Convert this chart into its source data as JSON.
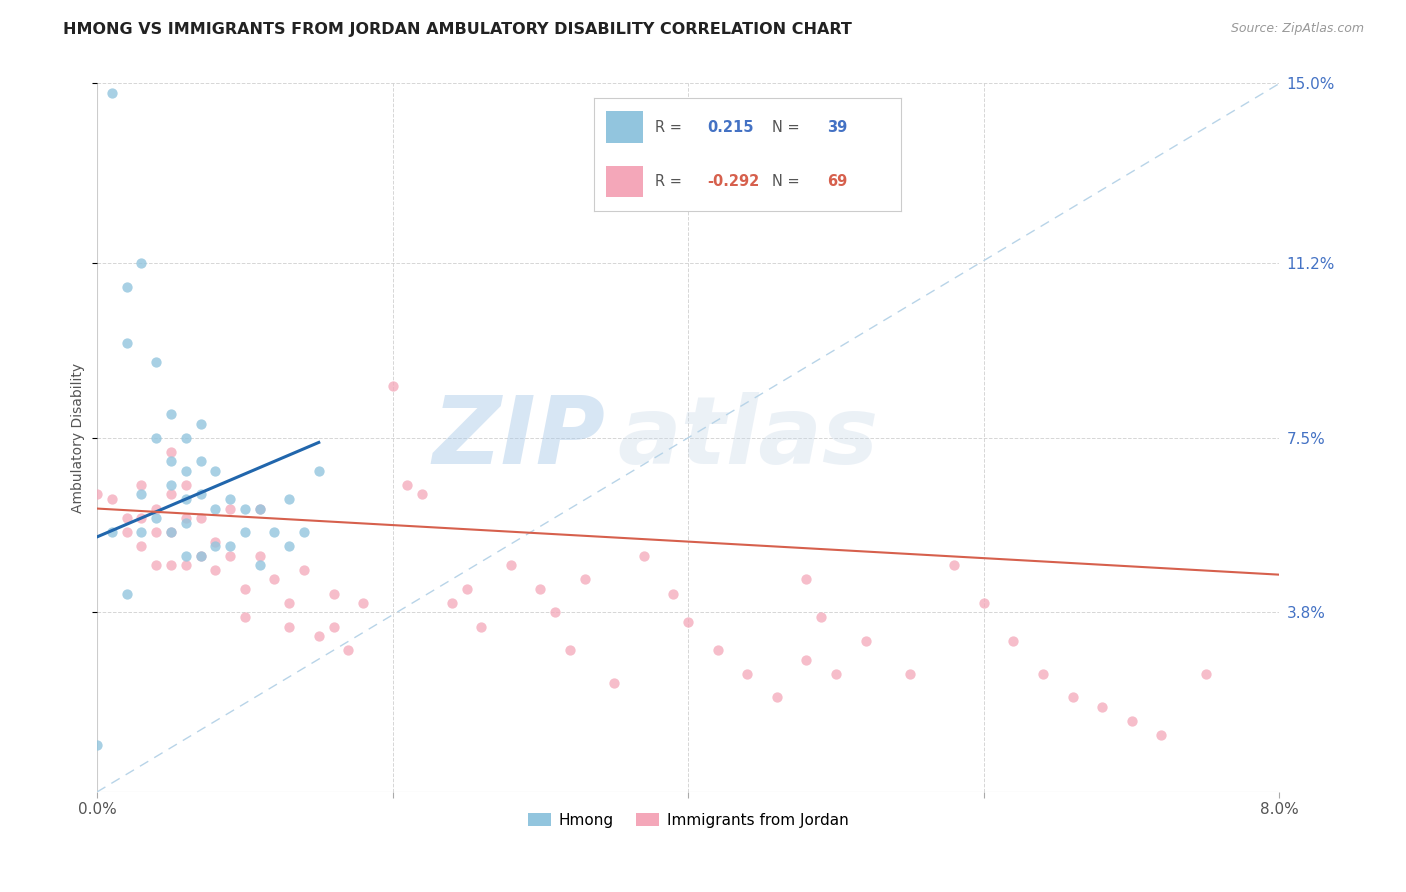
{
  "title": "HMONG VS IMMIGRANTS FROM JORDAN AMBULATORY DISABILITY CORRELATION CHART",
  "source": "Source: ZipAtlas.com",
  "ylabel": "Ambulatory Disability",
  "x_min": 0.0,
  "x_max": 0.08,
  "y_min": 0.0,
  "y_max": 0.15,
  "y_tick_labels_right": [
    "3.8%",
    "7.5%",
    "11.2%",
    "15.0%"
  ],
  "y_tick_vals_right": [
    0.038,
    0.075,
    0.112,
    0.15
  ],
  "color_hmong": "#92c5de",
  "color_jordan": "#f4a7b9",
  "color_trend_hmong": "#2166ac",
  "color_trend_jordan": "#d6604d",
  "color_diagonal": "#b8d4e8",
  "watermark_zip": "ZIP",
  "watermark_atlas": "atlas",
  "hmong_x": [
    0.001,
    0.002,
    0.002,
    0.003,
    0.003,
    0.003,
    0.004,
    0.004,
    0.004,
    0.005,
    0.005,
    0.005,
    0.005,
    0.006,
    0.006,
    0.006,
    0.006,
    0.006,
    0.007,
    0.007,
    0.007,
    0.007,
    0.008,
    0.008,
    0.008,
    0.009,
    0.009,
    0.01,
    0.01,
    0.011,
    0.011,
    0.012,
    0.013,
    0.013,
    0.014,
    0.015,
    0.001,
    0.002,
    0.0
  ],
  "hmong_y": [
    0.148,
    0.107,
    0.095,
    0.112,
    0.063,
    0.055,
    0.091,
    0.075,
    0.058,
    0.08,
    0.07,
    0.065,
    0.055,
    0.075,
    0.068,
    0.062,
    0.057,
    0.05,
    0.078,
    0.07,
    0.063,
    0.05,
    0.068,
    0.06,
    0.052,
    0.062,
    0.052,
    0.06,
    0.055,
    0.06,
    0.048,
    0.055,
    0.062,
    0.052,
    0.055,
    0.068,
    0.055,
    0.042,
    0.01
  ],
  "jordan_x": [
    0.0,
    0.001,
    0.002,
    0.002,
    0.003,
    0.003,
    0.003,
    0.004,
    0.004,
    0.004,
    0.005,
    0.005,
    0.005,
    0.005,
    0.006,
    0.006,
    0.006,
    0.007,
    0.007,
    0.008,
    0.008,
    0.009,
    0.009,
    0.01,
    0.01,
    0.011,
    0.011,
    0.012,
    0.013,
    0.013,
    0.014,
    0.015,
    0.016,
    0.016,
    0.017,
    0.018,
    0.02,
    0.021,
    0.022,
    0.024,
    0.025,
    0.026,
    0.028,
    0.03,
    0.031,
    0.032,
    0.033,
    0.035,
    0.037,
    0.039,
    0.04,
    0.042,
    0.044,
    0.046,
    0.048,
    0.049,
    0.05,
    0.052,
    0.055,
    0.058,
    0.06,
    0.062,
    0.064,
    0.066,
    0.068,
    0.07,
    0.072,
    0.075,
    0.048
  ],
  "jordan_y": [
    0.063,
    0.062,
    0.058,
    0.055,
    0.065,
    0.058,
    0.052,
    0.06,
    0.055,
    0.048,
    0.072,
    0.063,
    0.055,
    0.048,
    0.065,
    0.058,
    0.048,
    0.058,
    0.05,
    0.053,
    0.047,
    0.06,
    0.05,
    0.043,
    0.037,
    0.06,
    0.05,
    0.045,
    0.04,
    0.035,
    0.047,
    0.033,
    0.042,
    0.035,
    0.03,
    0.04,
    0.086,
    0.065,
    0.063,
    0.04,
    0.043,
    0.035,
    0.048,
    0.043,
    0.038,
    0.03,
    0.045,
    0.023,
    0.05,
    0.042,
    0.036,
    0.03,
    0.025,
    0.02,
    0.045,
    0.037,
    0.025,
    0.032,
    0.025,
    0.048,
    0.04,
    0.032,
    0.025,
    0.02,
    0.018,
    0.015,
    0.012,
    0.025,
    0.028
  ]
}
